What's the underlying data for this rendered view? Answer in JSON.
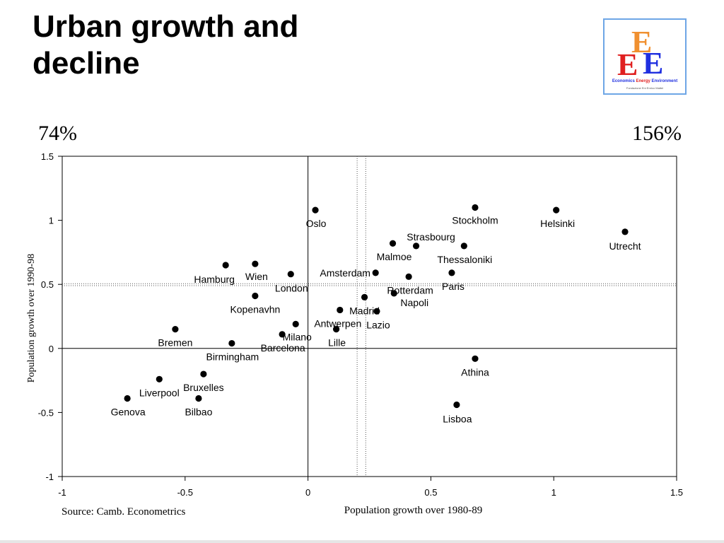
{
  "slide": {
    "title_line1": "Urban growth and",
    "title_line2": "decline",
    "left_pct": "74%",
    "right_pct": "156%"
  },
  "logo": {
    "letters": [
      "E",
      "E",
      "E"
    ],
    "line1_words": [
      "Economics",
      "Energy",
      "Environment"
    ],
    "line2": "Fondazione Eni Enrico Mattei",
    "colors": [
      "#f09030",
      "#e02020",
      "#2030e0"
    ]
  },
  "chart_data": {
    "type": "scatter",
    "xlabel": "Population growth over 1980-89",
    "ylabel": "Population growth over 1990-98",
    "source": "Source: Camb. Econometrics",
    "xlim": [
      -1,
      1.5
    ],
    "ylim": [
      -1,
      1.5
    ],
    "xticks": [
      -1,
      -0.5,
      0,
      0.5,
      1,
      1.5
    ],
    "yticks": [
      -1,
      -0.5,
      0,
      0.5,
      1,
      1.5
    ],
    "xtick_labels": [
      "-1",
      "-0.5",
      "0",
      "0.5",
      "1",
      "1.5"
    ],
    "ytick_labels": [
      "-1",
      "-0.5",
      "0",
      "0.5",
      "1",
      "1.5"
    ],
    "reference_lines": {
      "x_solid": 0,
      "y_solid": 0,
      "x_dotted": [
        0.2,
        0.235
      ],
      "y_dotted": [
        0.49,
        0.505
      ]
    },
    "grid": false,
    "points": [
      {
        "label": "Oslo",
        "x": 0.03,
        "y": 1.08
      },
      {
        "label": "Stockholm",
        "x": 0.68,
        "y": 1.1
      },
      {
        "label": "Helsinki",
        "x": 1.01,
        "y": 1.08
      },
      {
        "label": "Utrecht",
        "x": 1.29,
        "y": 0.91
      },
      {
        "label": "Strasbourg",
        "x": 0.44,
        "y": 0.8
      },
      {
        "label": "Thessaloniki",
        "x": 0.635,
        "y": 0.8
      },
      {
        "label": "Malmoe",
        "x": 0.345,
        "y": 0.82
      },
      {
        "label": "Amsterdam",
        "x": 0.275,
        "y": 0.59
      },
      {
        "label": "Rotterdam",
        "x": 0.41,
        "y": 0.56
      },
      {
        "label": "Paris",
        "x": 0.585,
        "y": 0.59
      },
      {
        "label": "Madrid",
        "x": 0.23,
        "y": 0.4
      },
      {
        "label": "Napoli",
        "x": 0.35,
        "y": 0.43
      },
      {
        "label": "Lazio",
        "x": 0.28,
        "y": 0.29
      },
      {
        "label": "Antwerpen",
        "x": 0.13,
        "y": 0.3
      },
      {
        "label": "Lille",
        "x": 0.115,
        "y": 0.15
      },
      {
        "label": "Milano",
        "x": -0.05,
        "y": 0.19
      },
      {
        "label": "Barcelona",
        "x": -0.105,
        "y": 0.11
      },
      {
        "label": "London",
        "x": -0.07,
        "y": 0.58
      },
      {
        "label": "Wien",
        "x": -0.215,
        "y": 0.66
      },
      {
        "label": "Hamburg",
        "x": -0.335,
        "y": 0.65
      },
      {
        "label": "Kopenavhn",
        "x": -0.215,
        "y": 0.41
      },
      {
        "label": "Bremen",
        "x": -0.54,
        "y": 0.15
      },
      {
        "label": "Birmingham",
        "x": -0.31,
        "y": 0.04
      },
      {
        "label": "Athina",
        "x": 0.68,
        "y": -0.08
      },
      {
        "label": "Bruxelles",
        "x": -0.425,
        "y": -0.2
      },
      {
        "label": "Liverpool",
        "x": -0.605,
        "y": -0.24
      },
      {
        "label": "Genova",
        "x": -0.735,
        "y": -0.39
      },
      {
        "label": "Bilbao",
        "x": -0.445,
        "y": -0.39
      },
      {
        "label": "Lisboa",
        "x": 0.605,
        "y": -0.44
      }
    ]
  }
}
